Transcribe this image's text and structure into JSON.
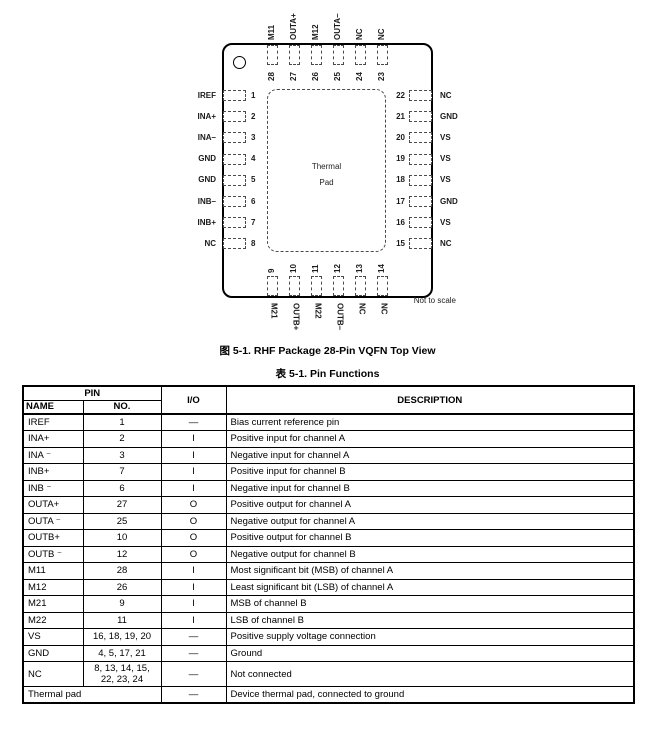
{
  "figure": {
    "caption": "图 5-1. RHF Package 28-Pin VQFN Top View",
    "not_to_scale": "Not to scale",
    "thermal_pad": {
      "line1": "Thermal",
      "line2": "Pad"
    },
    "pins": {
      "top": [
        {
          "no": "28",
          "name": "M11"
        },
        {
          "no": "27",
          "name": "OUTA+"
        },
        {
          "no": "26",
          "name": "M12"
        },
        {
          "no": "25",
          "name": "OUTA–"
        },
        {
          "no": "24",
          "name": "NC"
        },
        {
          "no": "23",
          "name": "NC"
        }
      ],
      "bottom": [
        {
          "no": "9",
          "name": "M21"
        },
        {
          "no": "10",
          "name": "OUTB+"
        },
        {
          "no": "11",
          "name": "M22"
        },
        {
          "no": "12",
          "name": "OUTB–"
        },
        {
          "no": "13",
          "name": "NC"
        },
        {
          "no": "14",
          "name": "NC"
        }
      ],
      "left": [
        {
          "no": "1",
          "name": "IREF"
        },
        {
          "no": "2",
          "name": "INA+"
        },
        {
          "no": "3",
          "name": "INA–"
        },
        {
          "no": "4",
          "name": "GND"
        },
        {
          "no": "5",
          "name": "GND"
        },
        {
          "no": "6",
          "name": "INB–"
        },
        {
          "no": "7",
          "name": "INB+"
        },
        {
          "no": "8",
          "name": "NC"
        }
      ],
      "right": [
        {
          "no": "22",
          "name": "NC"
        },
        {
          "no": "21",
          "name": "GND"
        },
        {
          "no": "20",
          "name": "VS"
        },
        {
          "no": "19",
          "name": "VS"
        },
        {
          "no": "18",
          "name": "VS"
        },
        {
          "no": "17",
          "name": "GND"
        },
        {
          "no": "16",
          "name": "VS"
        },
        {
          "no": "15",
          "name": "NC"
        }
      ]
    }
  },
  "table": {
    "caption": "表 5-1. Pin Functions",
    "headers": {
      "pin_group": "PIN",
      "name": "NAME",
      "no": "NO.",
      "io": "I/O",
      "description": "DESCRIPTION"
    },
    "rows": [
      {
        "name": "IREF",
        "no": "1",
        "io": "—",
        "description": "Bias current reference pin"
      },
      {
        "name": "INA+",
        "no": "2",
        "io": "I",
        "description": "Positive input for channel A"
      },
      {
        "name": "INA ⁻",
        "no": "3",
        "io": "I",
        "description": "Negative input for channel A"
      },
      {
        "name": "INB+",
        "no": "7",
        "io": "I",
        "description": "Positive input for channel B"
      },
      {
        "name": "INB ⁻",
        "no": "6",
        "io": "I",
        "description": "Negative input for channel B"
      },
      {
        "name": "OUTA+",
        "no": "27",
        "io": "O",
        "description": "Positive output for channel A"
      },
      {
        "name": "OUTA ⁻",
        "no": "25",
        "io": "O",
        "description": "Negative output for channel A"
      },
      {
        "name": "OUTB+",
        "no": "10",
        "io": "O",
        "description": "Positive output for channel B"
      },
      {
        "name": "OUTB ⁻",
        "no": "12",
        "io": "O",
        "description": "Negative output for channel B"
      },
      {
        "name": "M11",
        "no": "28",
        "io": "I",
        "description": "Most significant bit (MSB) of channel A"
      },
      {
        "name": "M12",
        "no": "26",
        "io": "I",
        "description": "Least significant bit (LSB) of channel A"
      },
      {
        "name": "M21",
        "no": "9",
        "io": "I",
        "description": "MSB of channel B"
      },
      {
        "name": "M22",
        "no": "11",
        "io": "I",
        "description": "LSB of channel B"
      },
      {
        "name": "VS",
        "no": "16, 18, 19, 20",
        "io": "—",
        "description": "Positive supply voltage connection"
      },
      {
        "name": "GND",
        "no": "4, 5, 17, 21",
        "io": "—",
        "description": "Ground"
      },
      {
        "name": "NC",
        "no": "8, 13, 14, 15, 22, 23, 24",
        "io": "—",
        "description": "Not connected"
      },
      {
        "name": "Thermal pad",
        "no": "",
        "span2": true,
        "io": "—",
        "description": "Device thermal pad, connected to ground"
      }
    ]
  }
}
